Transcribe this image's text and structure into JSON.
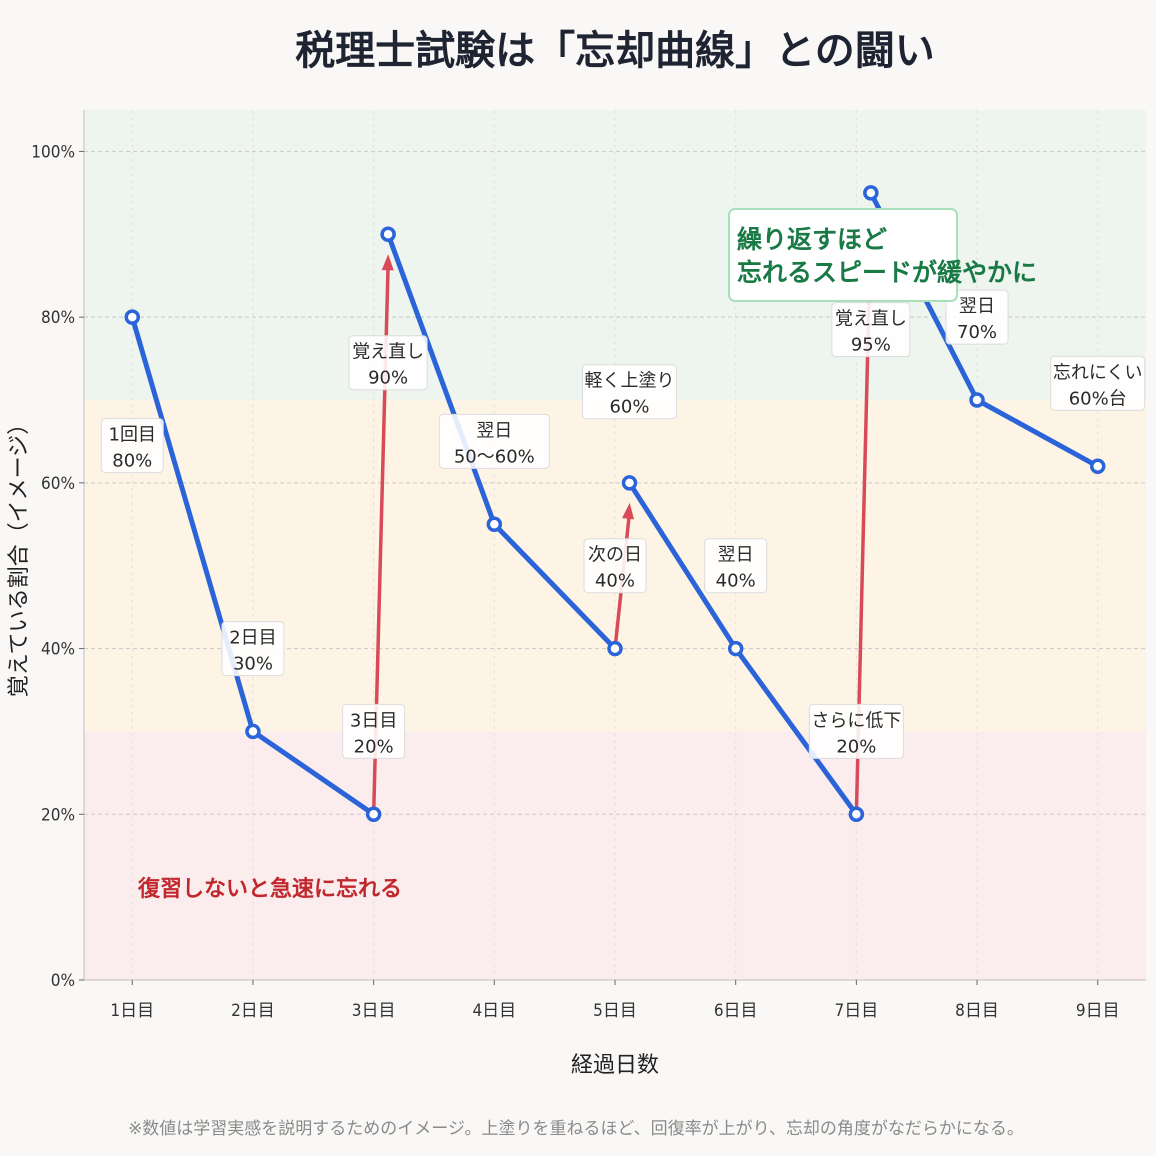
{
  "title": "税理士試験は「忘却曲線」との闘い",
  "footnote": "※数値は学習実感を説明するためのイメージ。上塗りを重ねるほど、回復率が上がり、忘却の角度がなだらかになる。",
  "colors": {
    "curve": "#2b63d9",
    "review_arrow": "#d84a57",
    "zone_high": "#eef4ee",
    "zone_mid": "#fdf4e6",
    "zone_low": "#fbeced"
  },
  "chart_data": {
    "type": "line",
    "title": "税理士試験は「忘却曲線」との闘い",
    "xlabel": "経過日数",
    "ylabel": "覚えている割合（イメージ）",
    "x_ticks": [
      "1日目",
      "2日目",
      "3日目",
      "4日目",
      "5日目",
      "6日目",
      "7日目",
      "8日目",
      "9日目"
    ],
    "y_ticks": [
      "0%",
      "20%",
      "40%",
      "60%",
      "80%",
      "100%"
    ],
    "xlim": [
      0.6,
      9.4
    ],
    "ylim": [
      0,
      105
    ],
    "grid": true,
    "series": [
      {
        "points": [
          {
            "x": 1,
            "y": 80
          },
          {
            "x": 2,
            "y": 30
          },
          {
            "x": 3,
            "y": 20
          },
          {
            "x": 3.12,
            "y": 90
          },
          {
            "x": 4,
            "y": 55
          },
          {
            "x": 5,
            "y": 40
          },
          {
            "x": 5.12,
            "y": 60
          },
          {
            "x": 6,
            "y": 40
          },
          {
            "x": 7,
            "y": 20
          },
          {
            "x": 7.12,
            "y": 95
          },
          {
            "x": 8,
            "y": 70
          },
          {
            "x": 9,
            "y": 62
          }
        ]
      }
    ],
    "review_arrows": [
      {
        "from": {
          "x": 3,
          "y": 20
        },
        "to": {
          "x": 3.12,
          "y": 90
        }
      },
      {
        "from": {
          "x": 5,
          "y": 40
        },
        "to": {
          "x": 5.12,
          "y": 60
        }
      },
      {
        "from": {
          "x": 7,
          "y": 20
        },
        "to": {
          "x": 7.12,
          "y": 95
        }
      }
    ],
    "zones": [
      {
        "from": 0,
        "to": 30,
        "color": "#fbeced",
        "label": "復習しないと急速に忘れる"
      },
      {
        "from": 30,
        "to": 70,
        "color": "#fdf4e6",
        "label": ""
      },
      {
        "from": 70,
        "to": 105,
        "color": "#eef4ee",
        "label": "繰り返すほど\n忘れるスピードが緩やかに"
      }
    ],
    "annotations": [
      {
        "lines": [
          "1回目",
          "80%"
        ],
        "x": 1,
        "y": 64.5
      },
      {
        "lines": [
          "2日目",
          "30%"
        ],
        "x": 2,
        "y": 40
      },
      {
        "lines": [
          "3日目",
          "20%"
        ],
        "x": 3,
        "y": 30
      },
      {
        "lines": [
          "覚え直し",
          "90%"
        ],
        "x": 3.12,
        "y": 74.5
      },
      {
        "lines": [
          "翌日",
          "50〜60%"
        ],
        "x": 4,
        "y": 65
      },
      {
        "lines": [
          "軽く上塗り",
          "60%"
        ],
        "x": 5.12,
        "y": 71
      },
      {
        "lines": [
          "次の日",
          "40%"
        ],
        "x": 5,
        "y": 50
      },
      {
        "lines": [
          "翌日",
          "40%"
        ],
        "x": 6,
        "y": 50
      },
      {
        "lines": [
          "さらに低下",
          "20%"
        ],
        "x": 7,
        "y": 30
      },
      {
        "lines": [
          "覚え直し",
          "95%"
        ],
        "x": 7.12,
        "y": 78.5
      },
      {
        "lines": [
          "翌日",
          "70%"
        ],
        "x": 8,
        "y": 80
      },
      {
        "lines": [
          "忘れにくい",
          "60%台"
        ],
        "x": 9,
        "y": 72
      }
    ]
  }
}
